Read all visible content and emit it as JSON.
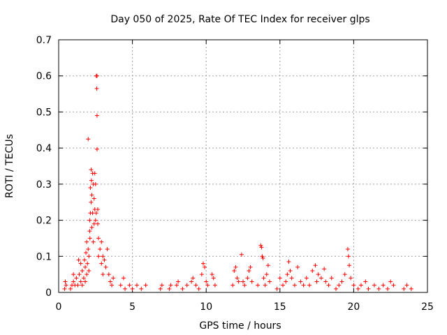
{
  "chart_data": {
    "type": "scatter",
    "title": "Day 050 of 2025, Rate Of TEC Index for receiver glps",
    "xlabel": "GPS time / hours",
    "ylabel": "ROTI / TECUs",
    "xlim": [
      0,
      25
    ],
    "ylim": [
      0,
      0.7
    ],
    "x_ticks": [
      "0",
      "5",
      "10",
      "15",
      "20",
      "25"
    ],
    "y_ticks": [
      "0",
      "0.1",
      "0.2",
      "0.3",
      "0.4",
      "0.5",
      "0.6",
      "0.7"
    ],
    "grid": true,
    "marker": "+",
    "series_color": "#ff0000",
    "points": [
      [
        0.4,
        0.01
      ],
      [
        0.45,
        0.03
      ],
      [
        0.5,
        0.02
      ],
      [
        0.8,
        0.01
      ],
      [
        0.9,
        0.02
      ],
      [
        1.0,
        0.03
      ],
      [
        1.0,
        0.05
      ],
      [
        1.1,
        0.02
      ],
      [
        1.2,
        0.04
      ],
      [
        1.3,
        0.02
      ],
      [
        1.35,
        0.09
      ],
      [
        1.4,
        0.05
      ],
      [
        1.5,
        0.03
      ],
      [
        1.5,
        0.08
      ],
      [
        1.6,
        0.06
      ],
      [
        1.6,
        0.02
      ],
      [
        1.7,
        0.04
      ],
      [
        1.75,
        0.09
      ],
      [
        1.8,
        0.07
      ],
      [
        1.8,
        0.03
      ],
      [
        1.85,
        0.11
      ],
      [
        1.9,
        0.05
      ],
      [
        1.9,
        0.14
      ],
      [
        1.95,
        0.08
      ],
      [
        2.0,
        0.12
      ],
      [
        2.0,
        0.425
      ],
      [
        2.05,
        0.06
      ],
      [
        2.05,
        0.1
      ],
      [
        2.1,
        0.17
      ],
      [
        2.1,
        0.2
      ],
      [
        2.12,
        0.15
      ],
      [
        2.15,
        0.22
      ],
      [
        2.15,
        0.29
      ],
      [
        2.2,
        0.25
      ],
      [
        2.2,
        0.34
      ],
      [
        2.22,
        0.31
      ],
      [
        2.25,
        0.27
      ],
      [
        2.25,
        0.18
      ],
      [
        2.3,
        0.33
      ],
      [
        2.3,
        0.22
      ],
      [
        2.35,
        0.3
      ],
      [
        2.35,
        0.14
      ],
      [
        2.4,
        0.26
      ],
      [
        2.4,
        0.19
      ],
      [
        2.45,
        0.33
      ],
      [
        2.45,
        0.23
      ],
      [
        2.5,
        0.3
      ],
      [
        2.5,
        0.2
      ],
      [
        2.55,
        0.22
      ],
      [
        2.55,
        0.6
      ],
      [
        2.58,
        0.565
      ],
      [
        2.6,
        0.49
      ],
      [
        2.6,
        0.397
      ],
      [
        2.6,
        0.6
      ],
      [
        2.65,
        0.23
      ],
      [
        2.65,
        0.19
      ],
      [
        2.7,
        0.15
      ],
      [
        2.7,
        0.1
      ],
      [
        2.8,
        0.12
      ],
      [
        2.9,
        0.14
      ],
      [
        2.9,
        0.08
      ],
      [
        3.0,
        0.1
      ],
      [
        3.0,
        0.05
      ],
      [
        3.1,
        0.09
      ],
      [
        3.2,
        0.07
      ],
      [
        3.3,
        0.12
      ],
      [
        3.4,
        0.05
      ],
      [
        3.5,
        0.03
      ],
      [
        3.6,
        0.02
      ],
      [
        3.7,
        0.04
      ],
      [
        4.2,
        0.02
      ],
      [
        4.4,
        0.04
      ],
      [
        4.5,
        0.01
      ],
      [
        4.8,
        0.02
      ],
      [
        5.0,
        0.01
      ],
      [
        5.3,
        0.02
      ],
      [
        5.6,
        0.01
      ],
      [
        5.9,
        0.02
      ],
      [
        6.9,
        0.01
      ],
      [
        7.0,
        0.02
      ],
      [
        7.5,
        0.01
      ],
      [
        7.6,
        0.02
      ],
      [
        8.0,
        0.02
      ],
      [
        8.1,
        0.03
      ],
      [
        8.4,
        0.01
      ],
      [
        8.7,
        0.02
      ],
      [
        9.0,
        0.03
      ],
      [
        9.1,
        0.04
      ],
      [
        9.3,
        0.02
      ],
      [
        9.5,
        0.01
      ],
      [
        9.7,
        0.05
      ],
      [
        9.8,
        0.08
      ],
      [
        9.9,
        0.07
      ],
      [
        10.0,
        0.03
      ],
      [
        10.1,
        0.02
      ],
      [
        10.4,
        0.05
      ],
      [
        10.5,
        0.04
      ],
      [
        10.6,
        0.02
      ],
      [
        11.8,
        0.02
      ],
      [
        11.9,
        0.06
      ],
      [
        12.0,
        0.07
      ],
      [
        12.1,
        0.04
      ],
      [
        12.2,
        0.03
      ],
      [
        12.4,
        0.105
      ],
      [
        12.5,
        0.03
      ],
      [
        12.6,
        0.02
      ],
      [
        12.8,
        0.04
      ],
      [
        12.9,
        0.06
      ],
      [
        13.0,
        0.07
      ],
      [
        13.1,
        0.03
      ],
      [
        13.5,
        0.02
      ],
      [
        13.7,
        0.13
      ],
      [
        13.75,
        0.125
      ],
      [
        13.8,
        0.1
      ],
      [
        13.85,
        0.095
      ],
      [
        13.9,
        0.04
      ],
      [
        14.0,
        0.02
      ],
      [
        14.1,
        0.05
      ],
      [
        14.2,
        0.075
      ],
      [
        14.3,
        0.03
      ],
      [
        14.8,
        0.01
      ],
      [
        15.0,
        0.04
      ],
      [
        15.2,
        0.02
      ],
      [
        15.4,
        0.03
      ],
      [
        15.5,
        0.05
      ],
      [
        15.6,
        0.085
      ],
      [
        15.7,
        0.06
      ],
      [
        15.8,
        0.04
      ],
      [
        16.0,
        0.02
      ],
      [
        16.2,
        0.07
      ],
      [
        16.4,
        0.03
      ],
      [
        16.6,
        0.02
      ],
      [
        16.8,
        0.04
      ],
      [
        17.0,
        0.02
      ],
      [
        17.2,
        0.06
      ],
      [
        17.4,
        0.075
      ],
      [
        17.5,
        0.03
      ],
      [
        17.6,
        0.05
      ],
      [
        17.8,
        0.04
      ],
      [
        18.0,
        0.065
      ],
      [
        18.1,
        0.03
      ],
      [
        18.3,
        0.02
      ],
      [
        18.5,
        0.04
      ],
      [
        18.8,
        0.01
      ],
      [
        19.0,
        0.02
      ],
      [
        19.2,
        0.03
      ],
      [
        19.4,
        0.05
      ],
      [
        19.6,
        0.12
      ],
      [
        19.65,
        0.1
      ],
      [
        19.7,
        0.075
      ],
      [
        19.8,
        0.04
      ],
      [
        20.0,
        0.02
      ],
      [
        20.3,
        0.01
      ],
      [
        20.5,
        0.02
      ],
      [
        20.8,
        0.03
      ],
      [
        21.0,
        0.01
      ],
      [
        21.4,
        0.02
      ],
      [
        21.7,
        0.01
      ],
      [
        22.0,
        0.02
      ],
      [
        22.3,
        0.01
      ],
      [
        22.5,
        0.03
      ],
      [
        22.7,
        0.02
      ],
      [
        23.4,
        0.01
      ],
      [
        23.6,
        0.02
      ],
      [
        23.9,
        0.01
      ]
    ]
  }
}
